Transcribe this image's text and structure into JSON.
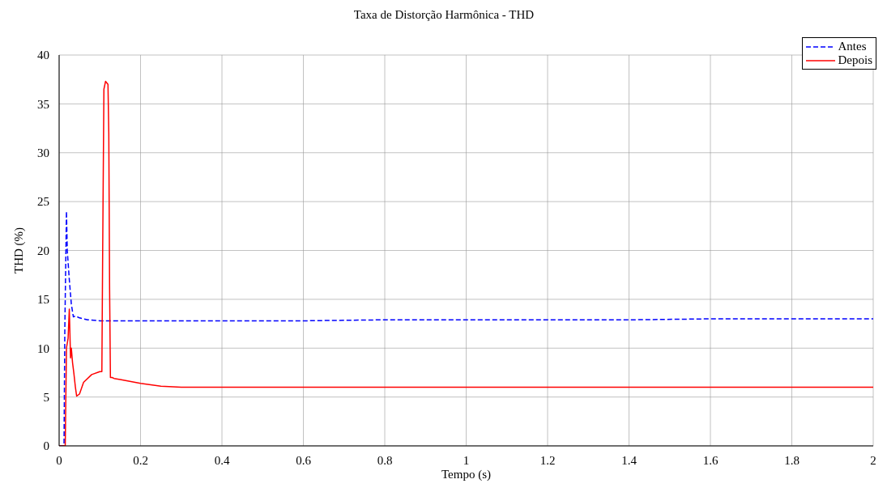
{
  "chart_data": {
    "type": "line",
    "title": "Taxa de Distorção Harmônica - THD",
    "xlabel": "Tempo (s)",
    "ylabel": "THD (%)",
    "xlim": [
      0,
      2
    ],
    "xticks": [
      0,
      0.2,
      0.4,
      0.6,
      0.8,
      1,
      1.2,
      1.4,
      1.6,
      1.8,
      2
    ],
    "ylim": [
      0,
      40
    ],
    "yticks": [
      0,
      5,
      10,
      15,
      20,
      25,
      30,
      35,
      40
    ],
    "grid": true,
    "legend": "top right",
    "marker": "none",
    "series": [
      {
        "name": "Antes",
        "color": "#0000ff",
        "line_style": "dashed",
        "x": [
          0,
          0.012,
          0.014,
          0.018,
          0.02,
          0.025,
          0.03,
          0.035,
          0.04,
          0.05,
          0.07,
          0.1,
          0.2,
          0.4,
          0.6,
          0.8,
          1,
          1.4,
          1.6,
          2
        ],
        "values": [
          0,
          0,
          12,
          24,
          20,
          17,
          14.5,
          13.2,
          13.3,
          13.1,
          12.9,
          12.8,
          12.8,
          12.8,
          12.8,
          12.9,
          12.9,
          12.9,
          13,
          13
        ]
      },
      {
        "name": "Depois",
        "color": "#ff0000",
        "line_style": "solid",
        "x": [
          0,
          0.015,
          0.018,
          0.022,
          0.025,
          0.028,
          0.03,
          0.033,
          0.036,
          0.04,
          0.043,
          0.05,
          0.06,
          0.08,
          0.1,
          0.105,
          0.107,
          0.11,
          0.114,
          0.12,
          0.122,
          0.124,
          0.126,
          0.13,
          0.135,
          0.15,
          0.2,
          0.25,
          0.3,
          2
        ],
        "values": [
          0,
          0,
          10,
          11,
          14,
          9,
          10,
          8.5,
          7.5,
          6,
          5.1,
          5.3,
          6.5,
          7.3,
          7.6,
          7.6,
          20,
          36.5,
          37.3,
          37,
          32,
          16,
          7,
          7,
          6.9,
          6.8,
          6.4,
          6.1,
          6,
          6
        ]
      }
    ]
  }
}
